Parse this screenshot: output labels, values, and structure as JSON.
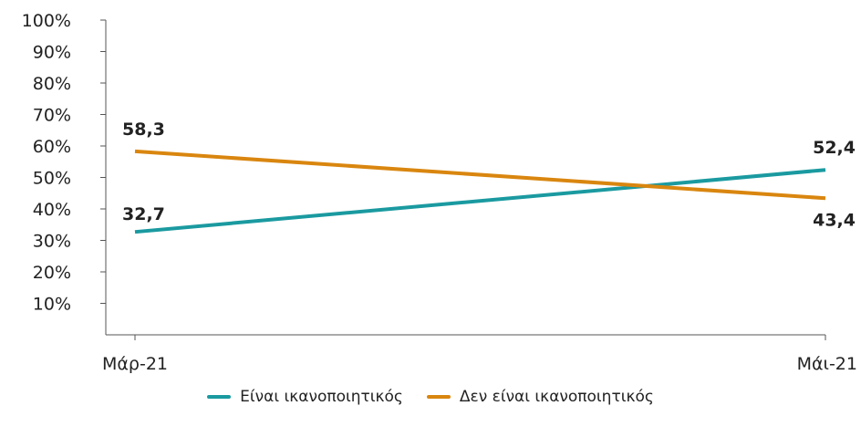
{
  "chart_data": {
    "type": "line",
    "title": "",
    "xlabel": "",
    "ylabel": "",
    "categories": [
      "Μάρ-21",
      "Μάι-21"
    ],
    "y_ticks": [
      "100%",
      "90%",
      "80%",
      "70%",
      "60%",
      "50%",
      "40%",
      "30%",
      "20%",
      "10%"
    ],
    "ylim": [
      0,
      100
    ],
    "grid": false,
    "legend_position": "bottom",
    "series": [
      {
        "name": "Είναι ικανοποιητικός",
        "color": "#1a9aa0",
        "values": [
          32.7,
          52.4
        ],
        "labels": [
          "32,7",
          "52,4"
        ]
      },
      {
        "name": "Δεν είναι ικανοποιητικός",
        "color": "#d9860f",
        "values": [
          58.3,
          43.4
        ],
        "labels": [
          "58,3",
          "43,4"
        ]
      }
    ]
  }
}
